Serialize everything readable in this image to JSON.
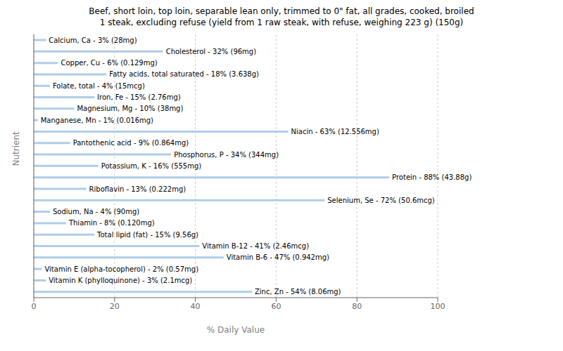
{
  "chart_data": {
    "type": "bar",
    "title": "Beef, short loin, top loin, separable lean only, trimmed to 0\" fat, all grades, cooked, broiled\n1 steak, excluding refuse (yield from 1 raw steak, with refuse, weighing 223 g) (150g)",
    "xlabel": "% Daily Value",
    "ylabel": "Nutrient",
    "orientation": "horizontal",
    "categories": [
      "Calcium, Ca - 3% (28mg)",
      "Cholesterol - 32% (96mg)",
      "Copper, Cu - 6% (0.129mg)",
      "Fatty acids, total saturated - 18% (3.638g)",
      "Folate, total - 4% (15mcg)",
      "Iron, Fe - 15% (2.76mg)",
      "Magnesium, Mg - 10% (38mg)",
      "Manganese, Mn - 1% (0.016mg)",
      "Niacin - 63% (12.556mg)",
      "Pantothenic acid - 9% (0.864mg)",
      "Phosphorus, P - 34% (344mg)",
      "Potassium, K - 16% (555mg)",
      "Protein - 88% (43.88g)",
      "Riboflavin - 13% (0.222mg)",
      "Selenium, Se - 72% (50.6mcg)",
      "Sodium, Na - 4% (90mg)",
      "Thiamin - 8% (0.120mg)",
      "Total lipid (fat) - 15% (9.56g)",
      "Vitamin B-12 - 41% (2.46mcg)",
      "Vitamin B-6 - 47% (0.942mg)",
      "Vitamin E (alpha-tocopherol) - 2% (0.57mg)",
      "Vitamin K (phylloquinone) - 3% (2.1mcg)",
      "Zinc, Zn - 54% (8.06mg)"
    ],
    "values": [
      3,
      32,
      6,
      18,
      4,
      15,
      10,
      1,
      63,
      9,
      34,
      16,
      88,
      13,
      72,
      4,
      8,
      15,
      41,
      47,
      2,
      3,
      54
    ],
    "color": "#aecde8",
    "xlim": [
      0,
      100
    ],
    "xticks": [
      0,
      20,
      40,
      60,
      80,
      100
    ],
    "grid": true,
    "tick_labels": "x"
  }
}
